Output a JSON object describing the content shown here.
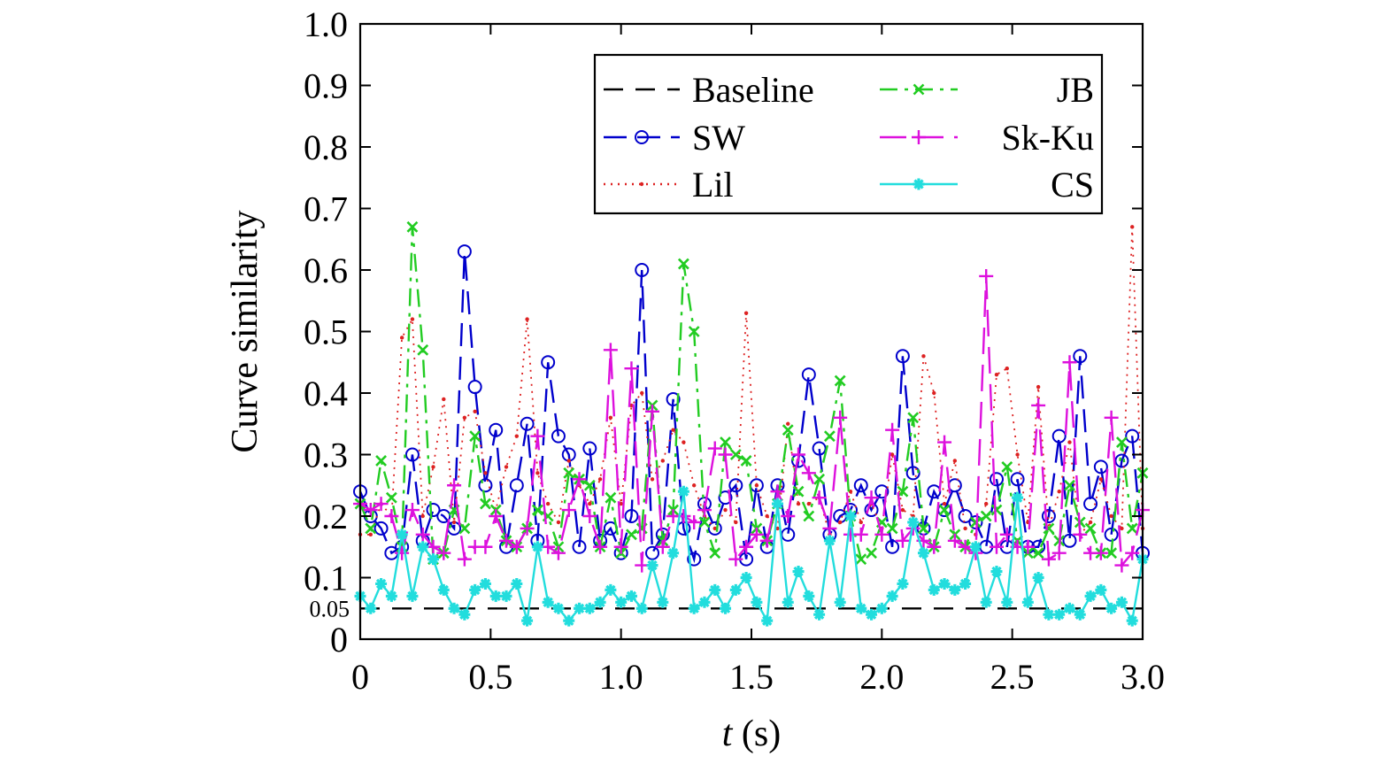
{
  "chart_data": {
    "type": "line",
    "xlabel_italic": "t",
    "xlabel_unit": " (s)",
    "ylabel": "Curve similarity",
    "xlim": [
      0,
      3.0
    ],
    "ylim": [
      0,
      1.0
    ],
    "x_ticks": [
      "0",
      "0.5",
      "1.0",
      "1.5",
      "2.0",
      "2.5",
      "3.0"
    ],
    "x_tick_values": [
      0,
      0.5,
      1.0,
      1.5,
      2.0,
      2.5,
      3.0
    ],
    "y_ticks": [
      "0",
      "0.1",
      "0.2",
      "0.3",
      "0.4",
      "0.5",
      "0.6",
      "0.7",
      "0.8",
      "0.9",
      "1.0"
    ],
    "y_tick_values": [
      0,
      0.1,
      0.2,
      0.3,
      0.4,
      0.5,
      0.6,
      0.7,
      0.8,
      0.9,
      1.0
    ],
    "extra_y_tick": {
      "label": "0.05",
      "value": 0.05
    },
    "legend_position": "top-right",
    "grid": false,
    "series": [
      {
        "name": "Baseline",
        "color": "#000000",
        "dash": "22,14",
        "marker": "none",
        "x": [
          0,
          3.0
        ],
        "y": [
          0.05,
          0.05
        ]
      },
      {
        "name": "SW",
        "color": "#0000cc",
        "dash": "26,12",
        "marker": "circle",
        "x": [
          0.0,
          0.04,
          0.08,
          0.12,
          0.16,
          0.2,
          0.24,
          0.28,
          0.32,
          0.36,
          0.4,
          0.44,
          0.48,
          0.52,
          0.56,
          0.6,
          0.64,
          0.68,
          0.72,
          0.76,
          0.8,
          0.84,
          0.88,
          0.92,
          0.96,
          1.0,
          1.04,
          1.08,
          1.12,
          1.16,
          1.2,
          1.24,
          1.28,
          1.32,
          1.36,
          1.4,
          1.44,
          1.48,
          1.52,
          1.56,
          1.6,
          1.64,
          1.68,
          1.72,
          1.76,
          1.8,
          1.84,
          1.88,
          1.92,
          1.96,
          2.0,
          2.04,
          2.08,
          2.12,
          2.16,
          2.2,
          2.24,
          2.28,
          2.32,
          2.36,
          2.4,
          2.44,
          2.48,
          2.52,
          2.56,
          2.6,
          2.64,
          2.68,
          2.72,
          2.76,
          2.8,
          2.84,
          2.88,
          2.92,
          2.96,
          3.0
        ],
        "y": [
          0.24,
          0.2,
          0.18,
          0.14,
          0.15,
          0.3,
          0.16,
          0.21,
          0.2,
          0.18,
          0.63,
          0.41,
          0.25,
          0.34,
          0.15,
          0.25,
          0.35,
          0.16,
          0.45,
          0.33,
          0.3,
          0.15,
          0.31,
          0.16,
          0.18,
          0.14,
          0.2,
          0.6,
          0.14,
          0.17,
          0.39,
          0.18,
          0.13,
          0.22,
          0.18,
          0.23,
          0.25,
          0.13,
          0.25,
          0.15,
          0.25,
          0.17,
          0.29,
          0.43,
          0.31,
          0.17,
          0.2,
          0.21,
          0.25,
          0.21,
          0.24,
          0.15,
          0.46,
          0.27,
          0.18,
          0.24,
          0.21,
          0.25,
          0.2,
          0.19,
          0.15,
          0.26,
          0.15,
          0.26,
          0.15,
          0.15,
          0.2,
          0.33,
          0.16,
          0.46,
          0.22,
          0.28,
          0.17,
          0.29,
          0.33,
          0.14
        ]
      },
      {
        "name": "Lil",
        "color": "#dd2222",
        "dash": "2,6",
        "marker": "dot",
        "x": [
          0.0,
          0.04,
          0.08,
          0.12,
          0.16,
          0.2,
          0.24,
          0.28,
          0.32,
          0.36,
          0.4,
          0.44,
          0.48,
          0.52,
          0.56,
          0.6,
          0.64,
          0.68,
          0.72,
          0.76,
          0.8,
          0.84,
          0.88,
          0.92,
          0.96,
          1.0,
          1.04,
          1.08,
          1.12,
          1.16,
          1.2,
          1.24,
          1.28,
          1.32,
          1.36,
          1.4,
          1.44,
          1.48,
          1.52,
          1.56,
          1.6,
          1.64,
          1.68,
          1.72,
          1.76,
          1.8,
          1.84,
          1.88,
          1.92,
          1.96,
          2.0,
          2.04,
          2.08,
          2.12,
          2.16,
          2.2,
          2.24,
          2.28,
          2.32,
          2.36,
          2.4,
          2.44,
          2.48,
          2.52,
          2.56,
          2.6,
          2.64,
          2.68,
          2.72,
          2.76,
          2.8,
          2.84,
          2.88,
          2.92,
          2.96,
          3.0
        ],
        "y": [
          0.17,
          0.17,
          0.22,
          0.2,
          0.49,
          0.52,
          0.2,
          0.28,
          0.39,
          0.19,
          0.36,
          0.37,
          0.27,
          0.21,
          0.28,
          0.33,
          0.52,
          0.27,
          0.22,
          0.19,
          0.29,
          0.25,
          0.22,
          0.26,
          0.36,
          0.22,
          0.38,
          0.4,
          0.26,
          0.29,
          0.34,
          0.32,
          0.25,
          0.2,
          0.18,
          0.21,
          0.19,
          0.53,
          0.25,
          0.2,
          0.18,
          0.35,
          0.22,
          0.22,
          0.23,
          0.17,
          0.19,
          0.24,
          0.19,
          0.22,
          0.18,
          0.3,
          0.21,
          0.2,
          0.46,
          0.4,
          0.22,
          0.29,
          0.18,
          0.17,
          0.22,
          0.43,
          0.44,
          0.3,
          0.19,
          0.41,
          0.18,
          0.24,
          0.32,
          0.17,
          0.19,
          0.26,
          0.2,
          0.18,
          0.67,
          0.18
        ]
      },
      {
        "name": "JB",
        "color": "#22cc22",
        "dash": "20,8,4,8",
        "marker": "x",
        "x": [
          0.0,
          0.04,
          0.08,
          0.12,
          0.16,
          0.2,
          0.24,
          0.28,
          0.32,
          0.36,
          0.4,
          0.44,
          0.48,
          0.52,
          0.56,
          0.6,
          0.64,
          0.68,
          0.72,
          0.76,
          0.8,
          0.84,
          0.88,
          0.92,
          0.96,
          1.0,
          1.04,
          1.08,
          1.12,
          1.16,
          1.2,
          1.24,
          1.28,
          1.32,
          1.36,
          1.4,
          1.44,
          1.48,
          1.52,
          1.56,
          1.6,
          1.64,
          1.68,
          1.72,
          1.76,
          1.8,
          1.84,
          1.88,
          1.92,
          1.96,
          2.0,
          2.04,
          2.08,
          2.12,
          2.16,
          2.2,
          2.24,
          2.28,
          2.32,
          2.36,
          2.4,
          2.44,
          2.48,
          2.52,
          2.56,
          2.6,
          2.64,
          2.68,
          2.72,
          2.76,
          2.8,
          2.84,
          2.88,
          2.92,
          2.96,
          3.0
        ],
        "y": [
          0.22,
          0.18,
          0.29,
          0.23,
          0.15,
          0.67,
          0.47,
          0.13,
          0.14,
          0.21,
          0.18,
          0.33,
          0.22,
          0.21,
          0.16,
          0.15,
          0.18,
          0.21,
          0.2,
          0.15,
          0.27,
          0.26,
          0.25,
          0.15,
          0.23,
          0.14,
          0.17,
          0.18,
          0.38,
          0.16,
          0.21,
          0.61,
          0.5,
          0.19,
          0.14,
          0.32,
          0.3,
          0.29,
          0.18,
          0.16,
          0.22,
          0.34,
          0.24,
          0.2,
          0.26,
          0.33,
          0.42,
          0.2,
          0.13,
          0.14,
          0.19,
          0.18,
          0.24,
          0.36,
          0.18,
          0.15,
          0.21,
          0.17,
          0.15,
          0.19,
          0.2,
          0.21,
          0.28,
          0.16,
          0.14,
          0.14,
          0.18,
          0.16,
          0.25,
          0.19,
          0.18,
          0.14,
          0.14,
          0.32,
          0.18,
          0.27
        ]
      },
      {
        "name": "Sk-Ku",
        "color": "#dd11dd",
        "dash": "30,12",
        "marker": "plus",
        "x": [
          0.0,
          0.04,
          0.08,
          0.12,
          0.16,
          0.2,
          0.24,
          0.28,
          0.32,
          0.36,
          0.4,
          0.44,
          0.48,
          0.52,
          0.56,
          0.6,
          0.64,
          0.68,
          0.72,
          0.76,
          0.8,
          0.84,
          0.88,
          0.92,
          0.96,
          1.0,
          1.04,
          1.08,
          1.12,
          1.16,
          1.2,
          1.24,
          1.28,
          1.32,
          1.36,
          1.4,
          1.44,
          1.48,
          1.52,
          1.56,
          1.6,
          1.64,
          1.68,
          1.72,
          1.76,
          1.8,
          1.84,
          1.88,
          1.92,
          1.96,
          2.0,
          2.04,
          2.08,
          2.12,
          2.16,
          2.2,
          2.24,
          2.28,
          2.32,
          2.36,
          2.4,
          2.44,
          2.48,
          2.52,
          2.56,
          2.6,
          2.64,
          2.68,
          2.72,
          2.76,
          2.8,
          2.84,
          2.88,
          2.92,
          2.96,
          3.0
        ],
        "y": [
          0.22,
          0.21,
          0.22,
          0.2,
          0.14,
          0.21,
          0.17,
          0.15,
          0.14,
          0.25,
          0.13,
          0.15,
          0.15,
          0.2,
          0.16,
          0.15,
          0.18,
          0.33,
          0.15,
          0.14,
          0.21,
          0.26,
          0.2,
          0.15,
          0.47,
          0.15,
          0.44,
          0.12,
          0.37,
          0.15,
          0.2,
          0.2,
          0.19,
          0.21,
          0.31,
          0.3,
          0.13,
          0.15,
          0.17,
          0.16,
          0.24,
          0.2,
          0.3,
          0.27,
          0.23,
          0.18,
          0.36,
          0.17,
          0.17,
          0.23,
          0.17,
          0.34,
          0.16,
          0.18,
          0.16,
          0.15,
          0.32,
          0.16,
          0.15,
          0.14,
          0.59,
          0.15,
          0.17,
          0.15,
          0.15,
          0.38,
          0.13,
          0.14,
          0.45,
          0.17,
          0.14,
          0.14,
          0.36,
          0.12,
          0.14,
          0.21
        ]
      },
      {
        "name": "CS",
        "color": "#22dddd",
        "dash": "",
        "marker": "star",
        "x": [
          0.0,
          0.04,
          0.08,
          0.12,
          0.16,
          0.2,
          0.24,
          0.28,
          0.32,
          0.36,
          0.4,
          0.44,
          0.48,
          0.52,
          0.56,
          0.6,
          0.64,
          0.68,
          0.72,
          0.76,
          0.8,
          0.84,
          0.88,
          0.92,
          0.96,
          1.0,
          1.04,
          1.08,
          1.12,
          1.16,
          1.2,
          1.24,
          1.28,
          1.32,
          1.36,
          1.4,
          1.44,
          1.48,
          1.52,
          1.56,
          1.6,
          1.64,
          1.68,
          1.72,
          1.76,
          1.8,
          1.84,
          1.88,
          1.92,
          1.96,
          2.0,
          2.04,
          2.08,
          2.12,
          2.16,
          2.2,
          2.24,
          2.28,
          2.32,
          2.36,
          2.4,
          2.44,
          2.48,
          2.52,
          2.56,
          2.6,
          2.64,
          2.68,
          2.72,
          2.76,
          2.8,
          2.84,
          2.88,
          2.92,
          2.96,
          3.0
        ],
        "y": [
          0.07,
          0.05,
          0.09,
          0.07,
          0.17,
          0.07,
          0.15,
          0.13,
          0.08,
          0.05,
          0.04,
          0.08,
          0.09,
          0.07,
          0.07,
          0.09,
          0.03,
          0.15,
          0.06,
          0.05,
          0.03,
          0.05,
          0.05,
          0.06,
          0.08,
          0.06,
          0.07,
          0.05,
          0.12,
          0.06,
          0.14,
          0.24,
          0.05,
          0.06,
          0.08,
          0.05,
          0.08,
          0.1,
          0.06,
          0.03,
          0.22,
          0.06,
          0.11,
          0.07,
          0.04,
          0.16,
          0.06,
          0.2,
          0.05,
          0.04,
          0.05,
          0.07,
          0.09,
          0.19,
          0.14,
          0.08,
          0.09,
          0.08,
          0.09,
          0.15,
          0.06,
          0.11,
          0.06,
          0.23,
          0.06,
          0.1,
          0.04,
          0.04,
          0.05,
          0.04,
          0.07,
          0.08,
          0.05,
          0.06,
          0.03,
          0.13
        ]
      }
    ]
  }
}
